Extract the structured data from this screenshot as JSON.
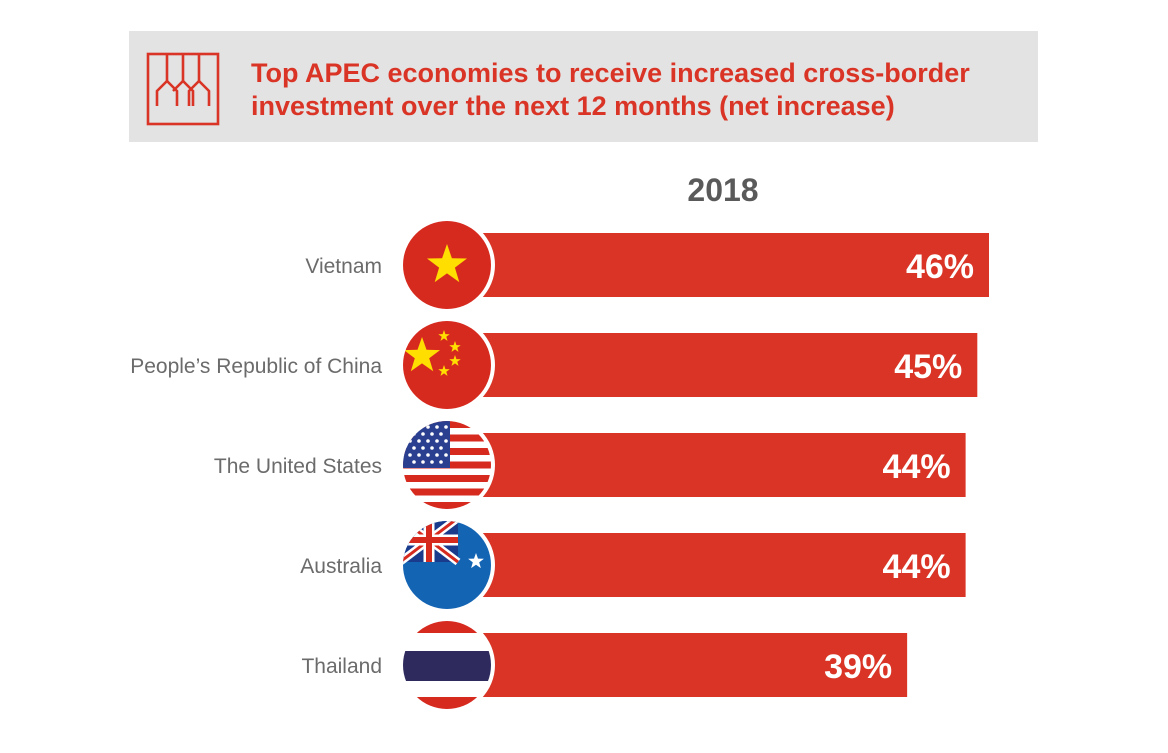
{
  "colors": {
    "accent": "#d93425",
    "header_bg": "#e3e3e3",
    "label": "#6b6b6b",
    "year": "#5a5a5a"
  },
  "header": {
    "icon": "branching-structure-icon",
    "title": "Top APEC economies to receive increased cross-border investment over the next 12 months (net increase)"
  },
  "chart_data": {
    "type": "bar",
    "orientation": "horizontal",
    "title": "Top APEC economies to receive increased cross-border investment over the next 12 months (net increase)",
    "series": [
      {
        "name": "2018",
        "values": [
          46,
          45,
          44,
          44,
          39
        ]
      }
    ],
    "categories": [
      "Vietnam",
      "People’s Republic of China",
      "The United States",
      "Australia",
      "Thailand"
    ],
    "data_labels": [
      "46%",
      "45%",
      "44%",
      "44%",
      "39%"
    ],
    "flags": [
      "vietnam-flag-icon",
      "china-flag-icon",
      "usa-flag-icon",
      "australia-flag-icon",
      "thailand-flag-icon"
    ],
    "xlim": [
      0,
      50
    ],
    "grid": false,
    "legend": "none"
  }
}
